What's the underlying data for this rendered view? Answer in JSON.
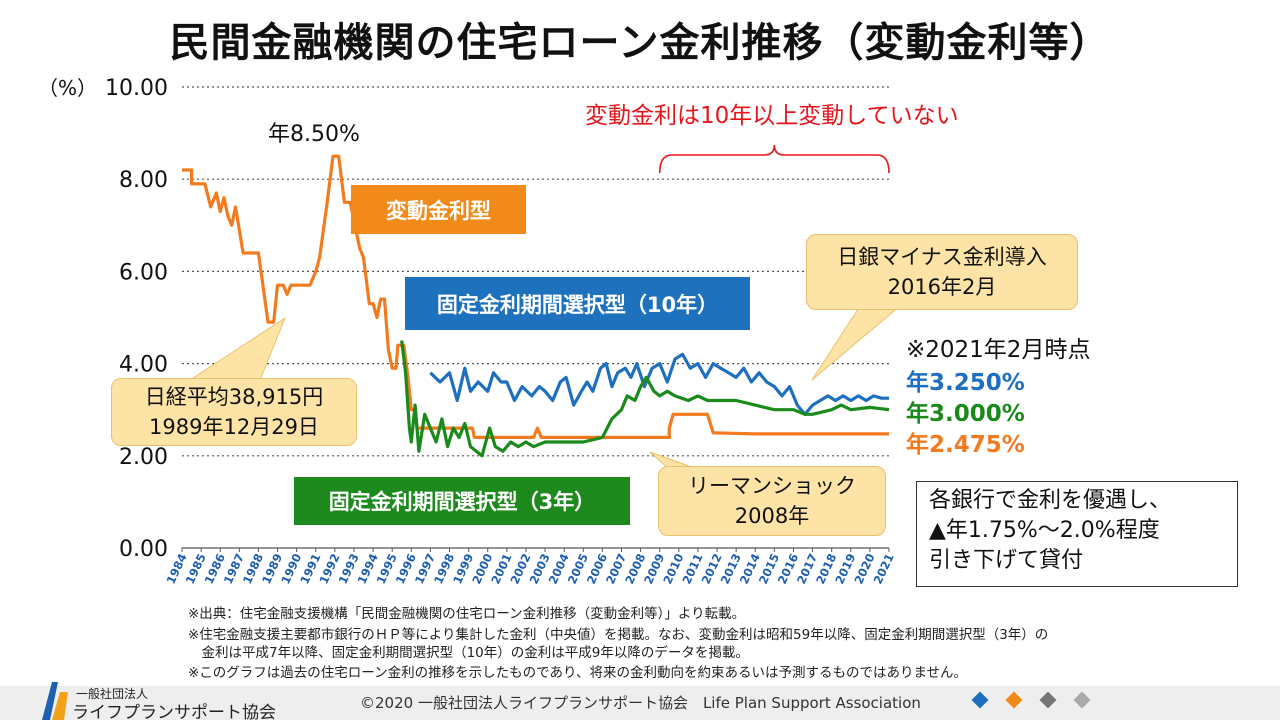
{
  "title": "民間金融機関の住宅ローン金利推移（変動金利等）",
  "labels": {
    "floating_box": "変動金利型",
    "fixed10_box": "固定金利期間選択型（10年）",
    "fixed3_box": "固定金利期間選択型（3年）",
    "peak_label": "年8.50%",
    "no_change_note": "変動金利は10年以上変動していない",
    "callout_nikkei_line1": "日経平均38,915円",
    "callout_nikkei_line2": "1989年12月29日",
    "callout_boj_line1": "日銀マイナス金利導入",
    "callout_boj_line2": "2016年2月",
    "callout_lehman_line1": "リーマンショック",
    "callout_lehman_line2": "2008年",
    "as_of": "※2021年2月時点",
    "rate_fixed10": "年3.250%",
    "rate_fixed3": "年3.000%",
    "rate_floating": "年2.475%",
    "info_line1": "各銀行で金利を優遇し、",
    "info_line2": "▲年1.75%～2.0%程度",
    "info_line3": "引き下げて貸付"
  },
  "footnotes": [
    "※出典：住宅金融支援機構「民間金融機関の住宅ローン金利推移（変動金利等）」より転載。",
    "※住宅金融支援主要都市銀行のＨＰ等により集計した金利（中央値）を掲載。なお、変動金利は昭和59年以降、固定金利期間選択型（3年）の",
    "　金利は平成7年以降、固定金利期間選択型（10年）の金利は平成9年以降のデータを掲載。",
    "※このグラフは過去の住宅ローン金利の推移を示したものであり、将来の金利動向を約束あるいは予測するものではありません。"
  ],
  "footer": {
    "copyright": "©2020 一般社団法人ライフプランサポート協会　Life Plan Support Association",
    "logo_small": "一般社団法人",
    "logo_big": "ライフプランサポート協会"
  },
  "colors": {
    "floating": "#f47a1f",
    "fixed10": "#1f6fc0",
    "fixed3": "#1a8a1a",
    "box_orange": "#f28a1a",
    "box_blue": "#1e72bd",
    "box_green": "#1e8a1e",
    "note_red": "#e8141c",
    "brace_red": "#e8141c"
  },
  "chart_data": {
    "type": "line",
    "ylabel": "（%）",
    "ylim": [
      0,
      10
    ],
    "yticks": [
      "10.00",
      "8.00",
      "6.00",
      "4.00",
      "2.00",
      "0.00"
    ],
    "ytick_values": [
      10,
      8,
      6,
      4,
      2,
      0
    ],
    "xlim": [
      1984,
      2021
    ],
    "xticks": [
      "1984",
      "1985",
      "1986",
      "1987",
      "1988",
      "1989",
      "1990",
      "1991",
      "1992",
      "1993",
      "1994",
      "1995",
      "1996",
      "1997",
      "1998",
      "1999",
      "2000",
      "2001",
      "2002",
      "2003",
      "2004",
      "2005",
      "2006",
      "2007",
      "2008",
      "2009",
      "2010",
      "2011",
      "2012",
      "2013",
      "2014",
      "2015",
      "2016",
      "2017",
      "2018",
      "2019",
      "2020",
      "2021"
    ],
    "grid": "horizontal dotted",
    "series": [
      {
        "name": "変動金利型",
        "points": [
          [
            1984,
            8.2
          ],
          [
            1984.5,
            8.2
          ],
          [
            1984.5,
            7.9
          ],
          [
            1985.2,
            7.9
          ],
          [
            1985.5,
            7.4
          ],
          [
            1985.8,
            7.7
          ],
          [
            1986,
            7.3
          ],
          [
            1986.2,
            7.6
          ],
          [
            1986.4,
            7.2
          ],
          [
            1986.6,
            7.0
          ],
          [
            1986.8,
            7.4
          ],
          [
            1987,
            6.9
          ],
          [
            1987.2,
            6.4
          ],
          [
            1987.5,
            6.4
          ],
          [
            1988,
            6.4
          ],
          [
            1988.2,
            5.8
          ],
          [
            1988.5,
            4.9
          ],
          [
            1988.8,
            4.9
          ],
          [
            1989,
            5.7
          ],
          [
            1989.3,
            5.7
          ],
          [
            1989.5,
            5.5
          ],
          [
            1989.7,
            5.7
          ],
          [
            1990,
            5.7
          ],
          [
            1990.4,
            5.7
          ],
          [
            1990.7,
            5.7
          ],
          [
            1991,
            6.0
          ],
          [
            1991.2,
            6.3
          ],
          [
            1991.4,
            6.9
          ],
          [
            1991.6,
            7.5
          ],
          [
            1991.9,
            8.5
          ],
          [
            1992.2,
            8.5
          ],
          [
            1992.5,
            7.5
          ],
          [
            1992.8,
            7.5
          ],
          [
            1993,
            7.1
          ],
          [
            1993.3,
            6.5
          ],
          [
            1993.5,
            6.3
          ],
          [
            1993.8,
            5.3
          ],
          [
            1994,
            5.3
          ],
          [
            1994.2,
            5.0
          ],
          [
            1994.4,
            5.4
          ],
          [
            1994.6,
            5.4
          ],
          [
            1994.8,
            4.3
          ],
          [
            1995,
            3.9
          ],
          [
            1995.2,
            3.9
          ],
          [
            1995.3,
            4.4
          ],
          [
            1995.6,
            4.4
          ],
          [
            1995.8,
            3.8
          ],
          [
            1996,
            3.0
          ],
          [
            1996.2,
            3.0
          ],
          [
            1996.3,
            2.6
          ],
          [
            1996.5,
            2.6
          ],
          [
            1997,
            2.6
          ],
          [
            1999.2,
            2.6
          ],
          [
            1999.3,
            2.4
          ],
          [
            2002.4,
            2.4
          ],
          [
            2002.6,
            2.6
          ],
          [
            2002.8,
            2.4
          ],
          [
            2006,
            2.4
          ],
          [
            2009.5,
            2.4
          ],
          [
            2009.5,
            2.6
          ],
          [
            2009.7,
            2.9
          ],
          [
            2011.5,
            2.9
          ],
          [
            2011.8,
            2.5
          ],
          [
            2014,
            2.475
          ],
          [
            2021,
            2.475
          ]
        ]
      },
      {
        "name": "固定金利期間選択型（10年）",
        "points": [
          [
            1997,
            3.8
          ],
          [
            1997.5,
            3.6
          ],
          [
            1998,
            3.8
          ],
          [
            1998.4,
            3.2
          ],
          [
            1998.8,
            3.9
          ],
          [
            1999.1,
            3.4
          ],
          [
            1999.5,
            3.6
          ],
          [
            2000,
            3.4
          ],
          [
            2000.3,
            3.8
          ],
          [
            2000.7,
            3.6
          ],
          [
            2001,
            3.6
          ],
          [
            2001.4,
            3.2
          ],
          [
            2001.8,
            3.5
          ],
          [
            2002.3,
            3.3
          ],
          [
            2002.7,
            3.5
          ],
          [
            2003,
            3.4
          ],
          [
            2003.4,
            3.2
          ],
          [
            2003.8,
            3.6
          ],
          [
            2004.1,
            3.7
          ],
          [
            2004.5,
            3.1
          ],
          [
            2004.9,
            3.4
          ],
          [
            2005.2,
            3.6
          ],
          [
            2005.5,
            3.4
          ],
          [
            2005.9,
            3.9
          ],
          [
            2006.2,
            4.0
          ],
          [
            2006.5,
            3.5
          ],
          [
            2006.8,
            3.8
          ],
          [
            2007.2,
            3.9
          ],
          [
            2007.5,
            3.7
          ],
          [
            2007.8,
            4.0
          ],
          [
            2008.2,
            3.5
          ],
          [
            2008.6,
            3.9
          ],
          [
            2009,
            4.0
          ],
          [
            2009.4,
            3.6
          ],
          [
            2009.8,
            4.1
          ],
          [
            2010.2,
            4.2
          ],
          [
            2010.6,
            3.9
          ],
          [
            2011,
            4.0
          ],
          [
            2011.4,
            3.7
          ],
          [
            2011.8,
            4.0
          ],
          [
            2012.2,
            3.9
          ],
          [
            2012.6,
            3.8
          ],
          [
            2013,
            3.7
          ],
          [
            2013.4,
            3.9
          ],
          [
            2013.8,
            3.6
          ],
          [
            2014.2,
            3.8
          ],
          [
            2014.6,
            3.6
          ],
          [
            2015,
            3.5
          ],
          [
            2015.4,
            3.3
          ],
          [
            2015.8,
            3.5
          ],
          [
            2016.2,
            3.1
          ],
          [
            2016.6,
            2.9
          ],
          [
            2017,
            3.1
          ],
          [
            2017.4,
            3.2
          ],
          [
            2017.8,
            3.3
          ],
          [
            2018.2,
            3.2
          ],
          [
            2018.6,
            3.3
          ],
          [
            2019,
            3.2
          ],
          [
            2019.4,
            3.3
          ],
          [
            2019.8,
            3.2
          ],
          [
            2020.2,
            3.3
          ],
          [
            2020.6,
            3.25
          ],
          [
            2021,
            3.25
          ]
        ]
      },
      {
        "name": "固定金利期間選択型（3年）",
        "points": [
          [
            1995.5,
            4.5
          ],
          [
            1995.7,
            3.8
          ],
          [
            1995.9,
            2.6
          ],
          [
            1996,
            2.3
          ],
          [
            1996.2,
            3.1
          ],
          [
            1996.4,
            2.1
          ],
          [
            1996.7,
            2.9
          ],
          [
            1997,
            2.6
          ],
          [
            1997.3,
            2.3
          ],
          [
            1997.6,
            2.8
          ],
          [
            1997.9,
            2.2
          ],
          [
            1998.2,
            2.6
          ],
          [
            1998.5,
            2.4
          ],
          [
            1998.8,
            2.7
          ],
          [
            1999.1,
            2.2
          ],
          [
            1999.4,
            2.1
          ],
          [
            1999.7,
            2.0
          ],
          [
            2000.1,
            2.6
          ],
          [
            2000.4,
            2.2
          ],
          [
            2000.8,
            2.1
          ],
          [
            2001.2,
            2.3
          ],
          [
            2001.6,
            2.2
          ],
          [
            2002,
            2.3
          ],
          [
            2002.4,
            2.2
          ],
          [
            2003,
            2.3
          ],
          [
            2004,
            2.3
          ],
          [
            2005,
            2.3
          ],
          [
            2006,
            2.4
          ],
          [
            2006.5,
            2.8
          ],
          [
            2007,
            3.0
          ],
          [
            2007.3,
            3.3
          ],
          [
            2007.7,
            3.2
          ],
          [
            2008,
            3.5
          ],
          [
            2008.3,
            3.7
          ],
          [
            2008.7,
            3.4
          ],
          [
            2009,
            3.3
          ],
          [
            2009.4,
            3.4
          ],
          [
            2009.8,
            3.3
          ],
          [
            2010.5,
            3.2
          ],
          [
            2011,
            3.3
          ],
          [
            2011.5,
            3.2
          ],
          [
            2012,
            3.2
          ],
          [
            2013,
            3.2
          ],
          [
            2014,
            3.1
          ],
          [
            2015,
            3.0
          ],
          [
            2016,
            3.0
          ],
          [
            2016.6,
            2.9
          ],
          [
            2017,
            2.9
          ],
          [
            2018,
            3.0
          ],
          [
            2018.5,
            3.1
          ],
          [
            2019,
            3.0
          ],
          [
            2020,
            3.05
          ],
          [
            2021,
            3.0
          ]
        ]
      }
    ]
  }
}
